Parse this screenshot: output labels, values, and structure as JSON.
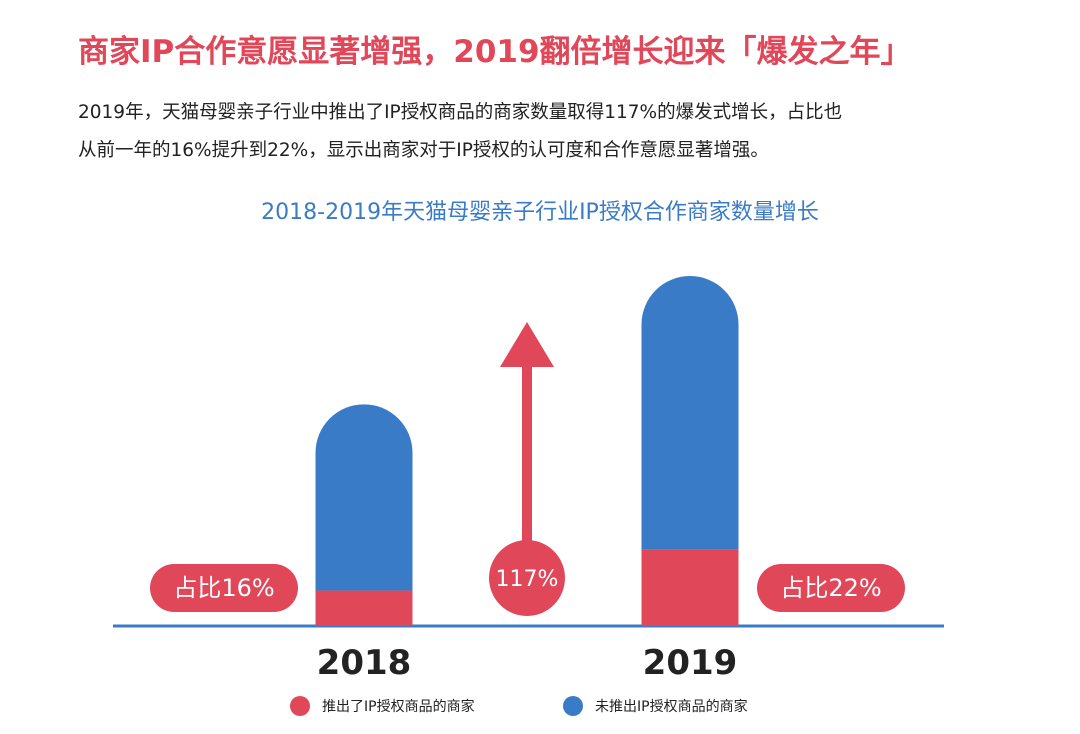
{
  "headline": "商家IP合作意愿显著增强，2019翻倍增长迎来「爆发之年」",
  "body_lines": [
    "2019年，天猫母婴亲子行业中推出了IP授权商品的商家数量取得117%的爆发式增长，占比也",
    "从前一年的16%提升到22%，显示出商家对于IP授权的认可度和合作意愿显著增强。"
  ],
  "colors": {
    "red": "#e0485a",
    "blue": "#3a7bc8",
    "axis": "#3a7bc8"
  },
  "chart_data": {
    "type": "bar",
    "stacked": true,
    "title": "2018-2019年天猫母婴亲子行业IP授权合作商家数量增长",
    "categories": [
      "2018",
      "2019"
    ],
    "series": [
      {
        "name": "推出了IP授权商品的商家",
        "color": "#e0485a",
        "values": [
          16,
          34.7
        ]
      },
      {
        "name": "未推出IP授权商品的商家",
        "color": "#3a7bc8",
        "values": [
          84,
          123.2
        ]
      }
    ],
    "share_labels": [
      "占比16%",
      "占比22%"
    ],
    "growth": {
      "label": "117%",
      "direction": "up"
    },
    "y_max": 157.9,
    "legend": "bottom",
    "grid": false
  }
}
